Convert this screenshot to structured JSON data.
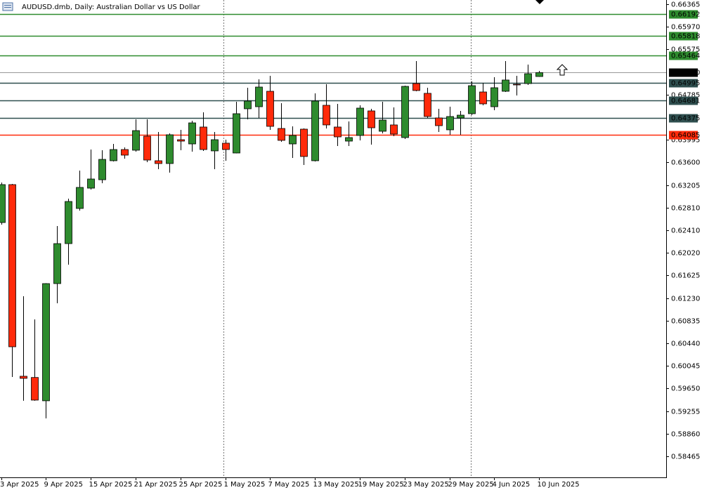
{
  "chart_data": {
    "type": "candlestick",
    "title": "AUDUSD.dmb, Daily:  Australian Dollar vs US Dollar",
    "categories": [
      "3 Apr 2025",
      null,
      null,
      null,
      "9 Apr 2025",
      null,
      null,
      null,
      "15 Apr 2025",
      null,
      null,
      null,
      "21 Apr 2025",
      null,
      null,
      null,
      "25 Apr 2025",
      null,
      null,
      null,
      "1 May 2025",
      null,
      null,
      null,
      "7 May 2025",
      null,
      null,
      null,
      "13 May 2025",
      null,
      null,
      null,
      "19 May 2025",
      null,
      null,
      null,
      "23 May 2025",
      null,
      null,
      null,
      "29 May 2025",
      null,
      null,
      null,
      "4 Jun 2025",
      null,
      null,
      null,
      "10 Jun 2025"
    ],
    "open": [
      0.6255,
      0.63213,
      0.59864,
      0.59843,
      0.59435,
      0.61483,
      0.62182,
      0.62796,
      0.63151,
      0.63298,
      0.6363,
      0.63826,
      0.63814,
      0.64059,
      0.6363,
      0.63581,
      0.63998,
      0.63924,
      0.64219,
      0.63802,
      0.63937,
      0.63765,
      0.64538,
      0.64574,
      0.64844,
      0.64194,
      0.63924,
      0.64182,
      0.6363,
      0.64599,
      0.64219,
      0.63973,
      0.64072,
      0.64501,
      0.64145,
      0.64256,
      0.64035,
      0.64979,
      0.64808,
      0.64378,
      0.6417,
      0.64378,
      0.64452,
      0.64832,
      0.64574,
      0.64844,
      0.64967,
      0.64979,
      0.65102
    ],
    "high": [
      0.6325,
      0.63225,
      0.61262,
      0.60857,
      0.6149,
      0.62489,
      0.62967,
      0.63458,
      0.63826,
      0.63814,
      0.63924,
      0.63863,
      0.64354,
      0.64354,
      0.64133,
      0.64108,
      0.6417,
      0.64329,
      0.64476,
      0.64133,
      0.63998,
      0.6466,
      0.64906,
      0.65053,
      0.65114,
      0.64636,
      0.64231,
      0.64195,
      0.64808,
      0.64967,
      0.64624,
      0.64317,
      0.64599,
      0.64538,
      0.6466,
      0.64562,
      0.64942,
      0.65372,
      0.64906,
      0.64538,
      0.64574,
      0.64501,
      0.65016,
      0.64992,
      0.6509,
      0.65372,
      0.65114,
      0.6531,
      0.652
    ],
    "low": [
      0.62514,
      0.59852,
      0.59435,
      0.59435,
      0.59128,
      0.6114,
      0.61814,
      0.62759,
      0.63127,
      0.63237,
      0.63618,
      0.63667,
      0.63789,
      0.63605,
      0.63483,
      0.63422,
      0.63814,
      0.63789,
      0.63802,
      0.63483,
      0.6363,
      0.6376,
      0.64354,
      0.64378,
      0.6417,
      0.63961,
      0.63679,
      0.63556,
      0.63618,
      0.64194,
      0.63888,
      0.63888,
      0.63986,
      0.63912,
      0.64108,
      0.64059,
      0.6401,
      0.64844,
      0.64378,
      0.64133,
      0.64084,
      0.64084,
      0.64427,
      0.64599,
      0.64513,
      0.64832,
      0.64771,
      0.64955,
      0.65095
    ],
    "close": [
      0.63213,
      0.60379,
      0.59827,
      0.59447,
      0.61483,
      0.62182,
      0.62918,
      0.63164,
      0.63311,
      0.63654,
      0.63826,
      0.63728,
      0.64157,
      0.63642,
      0.63581,
      0.64084,
      0.63973,
      0.64292,
      0.63826,
      0.63998,
      0.63826,
      0.64452,
      0.64673,
      0.64918,
      0.64231,
      0.63986,
      0.64072,
      0.63704,
      0.64673,
      0.64256,
      0.64047,
      0.64035,
      0.6455,
      0.64206,
      0.64341,
      0.64096,
      0.6493,
      0.64857,
      0.64403,
      0.64243,
      0.64403,
      0.64427,
      0.64942,
      0.64624,
      0.64906,
      0.65041,
      0.64955,
      0.65151,
      0.6517
    ],
    "up_color": "#2e8b2e",
    "down_color": "#ff2a0a",
    "ylim": [
      0.58097,
      0.66439
    ],
    "yticks": [
      0.66365,
      {
        "value": 0.6597,
        "label": "0.65970"
      },
      0.65575,
      0.64785,
      0.63995,
      {
        "value": 0.636,
        "label": "0.63600"
      },
      0.63205,
      {
        "value": 0.6281,
        "label": "0.62810"
      },
      {
        "value": 0.6241,
        "label": "0.62410"
      },
      {
        "value": 0.6202,
        "label": "0.62020"
      },
      0.61625,
      {
        "value": 0.6123,
        "label": "0.61230"
      },
      0.60835,
      {
        "value": 0.6044,
        "label": "0.60440"
      },
      0.60045,
      {
        "value": 0.5965,
        "label": "0.59650"
      },
      0.59255,
      {
        "value": 0.5886,
        "label": "0.58860"
      },
      0.58465
    ],
    "levels": [
      {
        "value": 0.66192,
        "color": "#2e8b2e"
      },
      {
        "value": 0.65818,
        "color": "#2e8b2e"
      },
      {
        "value": 0.65464,
        "color": "#2e8b2e"
      },
      {
        "value": {
          "value": 0.6517,
          "label": "0.65170"
        },
        "color": "#000000"
      },
      {
        "value": 0.64995,
        "color": "#2f4f4f"
      },
      {
        "value": 0.64681,
        "color": "#2f4f4f"
      },
      {
        "value": 0.64375,
        "color": "#2f4f4f"
      },
      {
        "value": 0.64085,
        "color": "#ff2a0a"
      }
    ]
  }
}
